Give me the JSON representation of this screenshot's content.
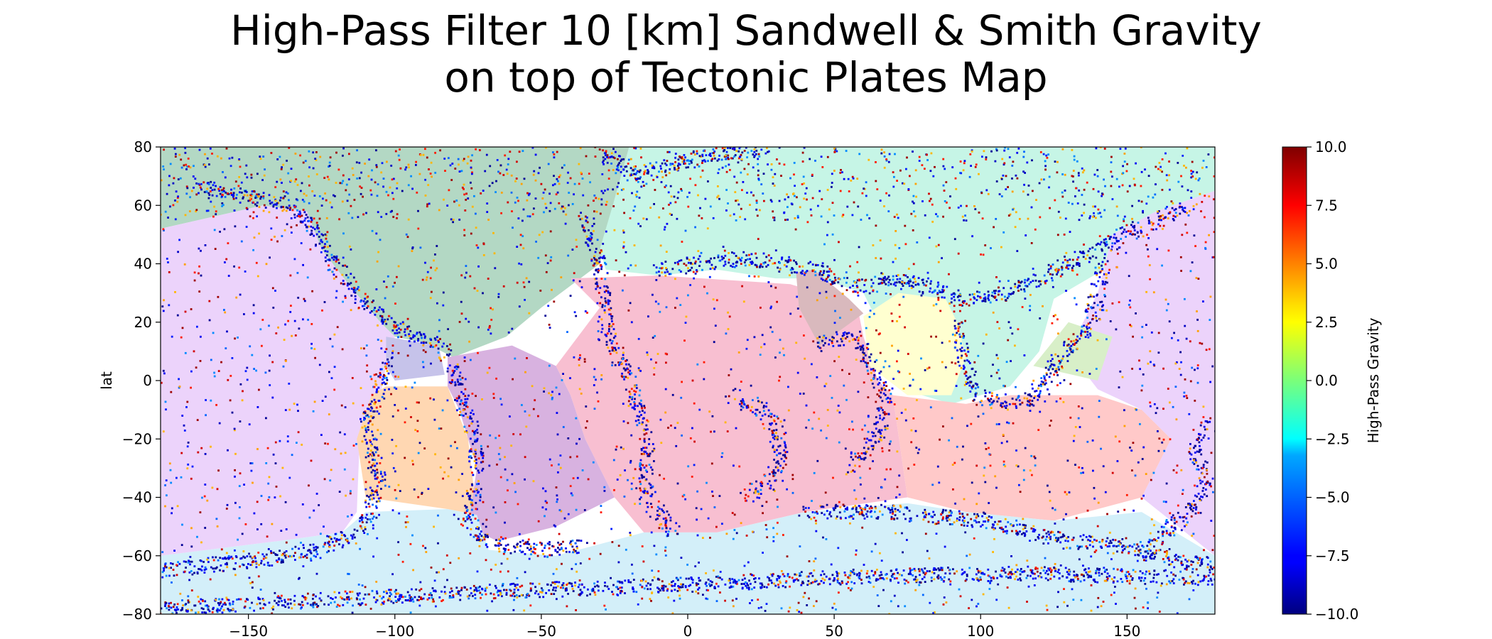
{
  "chart_data": {
    "type": "heatmap",
    "title_lines": [
      "High-Pass Filter 10 [km] Sandwell & Smith Gravity",
      "on top of Tectonic Plates Map"
    ],
    "xlabel": "",
    "ylabel": "lat",
    "xlim": [
      -180,
      180
    ],
    "ylim": [
      -80,
      80
    ],
    "x_ticks": [
      -150,
      -100,
      -50,
      0,
      50,
      100,
      150
    ],
    "x_tick_labels": [
      "−150",
      "−100",
      "−50",
      "0",
      "50",
      "100",
      "150"
    ],
    "y_ticks": [
      80,
      60,
      40,
      20,
      0,
      -20,
      -40,
      -60,
      -80
    ],
    "y_tick_labels": [
      "80",
      "60",
      "40",
      "20",
      "0",
      "−20",
      "−40",
      "−60",
      "−80"
    ],
    "colorbar": {
      "label": "High-Pass Gravity",
      "colormap": "jet",
      "vmin": -10.0,
      "vmax": 10.0,
      "ticks": [
        10.0,
        7.5,
        5.0,
        2.5,
        0.0,
        -2.5,
        -5.0,
        -7.5,
        -10.0
      ],
      "tick_labels": [
        "10.0",
        "7.5",
        "5.0",
        "2.5",
        "0.0",
        "−2.5",
        "−5.0",
        "−7.5",
        "−10.0"
      ]
    },
    "grid": false,
    "plates": [
      {
        "color": "#b3d8c4",
        "polygon": [
          [
            -180,
            80
          ],
          [
            -20,
            80
          ],
          [
            -25,
            62
          ],
          [
            -30,
            40
          ],
          [
            -50,
            25
          ],
          [
            -62,
            15
          ],
          [
            -80,
            8
          ],
          [
            -90,
            13
          ],
          [
            -100,
            15
          ],
          [
            -105,
            20
          ],
          [
            -115,
            32
          ],
          [
            -125,
            42
          ],
          [
            -130,
            52
          ],
          [
            -145,
            60
          ],
          [
            -180,
            52
          ]
        ]
      },
      {
        "color": "#c6f5e6",
        "polygon": [
          [
            -20,
            80
          ],
          [
            180,
            80
          ],
          [
            180,
            65
          ],
          [
            160,
            58
          ],
          [
            145,
            50
          ],
          [
            142,
            38
          ],
          [
            125,
            28
          ],
          [
            120,
            10
          ],
          [
            110,
            -2
          ],
          [
            90,
            -8
          ],
          [
            80,
            -5
          ],
          [
            70,
            10
          ],
          [
            60,
            30
          ],
          [
            45,
            35
          ],
          [
            30,
            35
          ],
          [
            10,
            38
          ],
          [
            -10,
            36
          ],
          [
            -28,
            38
          ],
          [
            -30,
            45
          ],
          [
            -25,
            62
          ]
        ]
      },
      {
        "color": "#ecd3fb",
        "polygon": [
          [
            -180,
            52
          ],
          [
            -145,
            60
          ],
          [
            -130,
            58
          ],
          [
            -125,
            45
          ],
          [
            -115,
            32
          ],
          [
            -105,
            20
          ],
          [
            -100,
            15
          ],
          [
            -103,
            5
          ],
          [
            -105,
            -5
          ],
          [
            -112,
            -20
          ],
          [
            -113,
            -45
          ],
          [
            -118,
            -52
          ],
          [
            -140,
            -55
          ],
          [
            -180,
            -60
          ]
        ]
      },
      {
        "color": "#ecd3fb",
        "polygon": [
          [
            180,
            -60
          ],
          [
            155,
            -40
          ],
          [
            165,
            -20
          ],
          [
            155,
            -10
          ],
          [
            140,
            -3
          ],
          [
            130,
            10
          ],
          [
            140,
            30
          ],
          [
            145,
            50
          ],
          [
            160,
            58
          ],
          [
            180,
            65
          ]
        ]
      },
      {
        "color": "#c6c3ea",
        "polygon": [
          [
            -103,
            15
          ],
          [
            -85,
            12
          ],
          [
            -83,
            2
          ],
          [
            -100,
            0
          ],
          [
            -103,
            5
          ]
        ]
      },
      {
        "color": "#ffd7b2",
        "polygon": [
          [
            -103,
            -2
          ],
          [
            -82,
            -2
          ],
          [
            -75,
            -20
          ],
          [
            -72,
            -46
          ],
          [
            -82,
            -44
          ],
          [
            -110,
            -40
          ],
          [
            -113,
            -20
          ],
          [
            -108,
            -5
          ]
        ]
      },
      {
        "color": "#d8b2e0",
        "polygon": [
          [
            -82,
            8
          ],
          [
            -60,
            12
          ],
          [
            -45,
            5
          ],
          [
            -40,
            -5
          ],
          [
            -35,
            -20
          ],
          [
            -25,
            -40
          ],
          [
            -45,
            -50
          ],
          [
            -65,
            -55
          ],
          [
            -75,
            -50
          ],
          [
            -72,
            -30
          ],
          [
            -78,
            -10
          ],
          [
            -82,
            -2
          ]
        ]
      },
      {
        "color": "#f8bfd1",
        "polygon": [
          [
            -45,
            5
          ],
          [
            -30,
            25
          ],
          [
            -40,
            35
          ],
          [
            -10,
            36
          ],
          [
            35,
            33
          ],
          [
            45,
            30
          ],
          [
            58,
            25
          ],
          [
            60,
            15
          ],
          [
            65,
            0
          ],
          [
            70,
            -5
          ],
          [
            75,
            -40
          ],
          [
            40,
            -45
          ],
          [
            10,
            -52
          ],
          [
            -15,
            -52
          ],
          [
            -25,
            -40
          ],
          [
            -35,
            -20
          ],
          [
            -40,
            -5
          ]
        ]
      },
      {
        "color": "#d9b9bd",
        "polygon": [
          [
            37,
            37
          ],
          [
            43,
            38
          ],
          [
            55,
            28
          ],
          [
            60,
            23
          ],
          [
            45,
            12
          ],
          [
            38,
            25
          ]
        ]
      },
      {
        "color": "#ffffd0",
        "polygon": [
          [
            60,
            22
          ],
          [
            72,
            30
          ],
          [
            88,
            28
          ],
          [
            92,
            20
          ],
          [
            95,
            8
          ],
          [
            90,
            -5
          ],
          [
            75,
            -5
          ],
          [
            62,
            5
          ]
        ]
      },
      {
        "color": "#d8efc8",
        "polygon": [
          [
            118,
            5
          ],
          [
            130,
            20
          ],
          [
            145,
            15
          ],
          [
            140,
            0
          ]
        ]
      },
      {
        "color": "#ffc9c9",
        "polygon": [
          [
            70,
            -5
          ],
          [
            95,
            -8
          ],
          [
            110,
            -5
          ],
          [
            140,
            -5
          ],
          [
            155,
            -10
          ],
          [
            165,
            -20
          ],
          [
            155,
            -40
          ],
          [
            125,
            -48
          ],
          [
            95,
            -45
          ],
          [
            75,
            -40
          ]
        ]
      },
      {
        "color": "#d3eff9",
        "polygon": [
          [
            -180,
            -60
          ],
          [
            -140,
            -55
          ],
          [
            -118,
            -52
          ],
          [
            -110,
            -45
          ],
          [
            -82,
            -44
          ],
          [
            -72,
            -46
          ],
          [
            -68,
            -58
          ],
          [
            -45,
            -60
          ],
          [
            -15,
            -52
          ],
          [
            10,
            -52
          ],
          [
            40,
            -45
          ],
          [
            75,
            -42
          ],
          [
            95,
            -45
          ],
          [
            125,
            -48
          ],
          [
            155,
            -45
          ],
          [
            180,
            -60
          ],
          [
            180,
            -80
          ],
          [
            -180,
            -80
          ]
        ]
      }
    ],
    "anomaly_ridges": [
      [
        [
          -167,
          67
        ],
        [
          -150,
          63
        ],
        [
          -135,
          60
        ],
        [
          -127,
          51
        ],
        [
          -123,
          44
        ],
        [
          -118,
          35
        ],
        [
          -108,
          25
        ],
        [
          -100,
          19
        ],
        [
          -92,
          15
        ],
        [
          -87,
          13
        ],
        [
          -82,
          9
        ]
      ],
      [
        [
          -80,
          6
        ],
        [
          -78,
          -5
        ],
        [
          -74,
          -15
        ],
        [
          -72,
          -25
        ],
        [
          -73,
          -38
        ],
        [
          -75,
          -48
        ],
        [
          -70,
          -55
        ],
        [
          -60,
          -57
        ],
        [
          -50,
          -58
        ],
        [
          -35,
          -57
        ]
      ],
      [
        [
          -10,
          38
        ],
        [
          5,
          40
        ],
        [
          20,
          42
        ],
        [
          30,
          40
        ],
        [
          45,
          38
        ],
        [
          55,
          33
        ],
        [
          62,
          32
        ],
        [
          70,
          35
        ],
        [
          80,
          33
        ],
        [
          90,
          28
        ],
        [
          100,
          28
        ],
        [
          110,
          30
        ],
        [
          122,
          35
        ],
        [
          130,
          40
        ],
        [
          140,
          45
        ],
        [
          150,
          50
        ],
        [
          160,
          55
        ],
        [
          170,
          60
        ]
      ],
      [
        [
          142,
          40
        ],
        [
          140,
          30
        ],
        [
          138,
          20
        ],
        [
          130,
          10
        ],
        [
          125,
          5
        ],
        [
          120,
          -5
        ],
        [
          110,
          -8
        ],
        [
          100,
          -5
        ],
        [
          95,
          3
        ],
        [
          93,
          12
        ],
        [
          93,
          20
        ]
      ],
      [
        [
          -30,
          80
        ],
        [
          -20,
          70
        ],
        [
          -12,
          72
        ],
        [
          0,
          75
        ],
        [
          10,
          78
        ],
        [
          30,
          80
        ]
      ],
      [
        [
          -35,
          55
        ],
        [
          -30,
          40
        ],
        [
          -28,
          20
        ],
        [
          -20,
          0
        ],
        [
          -14,
          -20
        ],
        [
          -14,
          -40
        ],
        [
          -5,
          -52
        ]
      ],
      [
        [
          55,
          -30
        ],
        [
          65,
          -20
        ],
        [
          68,
          -5
        ],
        [
          62,
          5
        ],
        [
          58,
          15
        ],
        [
          50,
          14
        ],
        [
          45,
          12
        ]
      ],
      [
        [
          40,
          -45
        ],
        [
          70,
          -45
        ],
        [
          100,
          -48
        ],
        [
          130,
          -55
        ],
        [
          150,
          -57
        ],
        [
          170,
          -62
        ],
        [
          180,
          -63
        ]
      ],
      [
        [
          -180,
          -65
        ],
        [
          -150,
          -62
        ],
        [
          -125,
          -58
        ],
        [
          -110,
          -50
        ],
        [
          -105,
          -35
        ],
        [
          -110,
          -15
        ],
        [
          -104,
          0
        ],
        [
          -102,
          10
        ]
      ],
      [
        [
          178,
          -15
        ],
        [
          173,
          -25
        ],
        [
          178,
          -35
        ],
        [
          172,
          -45
        ],
        [
          165,
          -50
        ],
        [
          155,
          -60
        ]
      ],
      [
        [
          -180,
          -78
        ],
        [
          -120,
          -75
        ],
        [
          -60,
          -72
        ],
        [
          0,
          -70
        ],
        [
          60,
          -67
        ],
        [
          120,
          -66
        ],
        [
          180,
          -68
        ]
      ],
      [
        [
          15,
          -5
        ],
        [
          25,
          -10
        ],
        [
          30,
          -15
        ],
        [
          32,
          -25
        ],
        [
          28,
          -35
        ],
        [
          20,
          -40
        ]
      ]
    ]
  }
}
